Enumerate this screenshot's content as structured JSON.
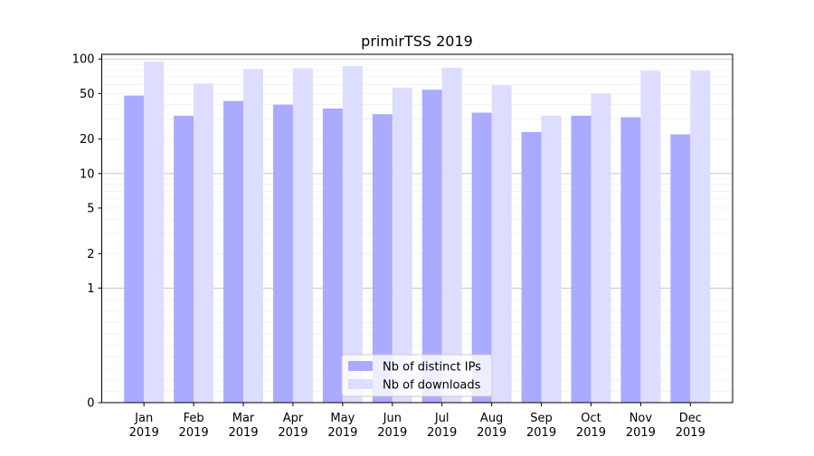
{
  "chart_data": {
    "type": "bar",
    "title": "primirTSS 2019",
    "xlabel": "",
    "ylabel": "",
    "yscale": "symlog",
    "ylim": [
      0,
      110
    ],
    "yticks": [
      0,
      1,
      2,
      5,
      10,
      20,
      50,
      100
    ],
    "ytick_labels": [
      "0",
      "1",
      "2",
      "5",
      "10",
      "20",
      "50",
      "100"
    ],
    "categories": [
      "Jan 2019",
      "Feb 2019",
      "Mar 2019",
      "Apr 2019",
      "May 2019",
      "Jun 2019",
      "Jul 2019",
      "Aug 2019",
      "Sep 2019",
      "Oct 2019",
      "Nov 2019",
      "Dec 2019"
    ],
    "category_lines": [
      [
        "Jan",
        "2019"
      ],
      [
        "Feb",
        "2019"
      ],
      [
        "Mar",
        "2019"
      ],
      [
        "Apr",
        "2019"
      ],
      [
        "May",
        "2019"
      ],
      [
        "Jun",
        "2019"
      ],
      [
        "Jul",
        "2019"
      ],
      [
        "Aug",
        "2019"
      ],
      [
        "Sep",
        "2019"
      ],
      [
        "Oct",
        "2019"
      ],
      [
        "Nov",
        "2019"
      ],
      [
        "Dec",
        "2019"
      ]
    ],
    "series": [
      {
        "name": "Nb of distinct IPs",
        "color": "#aaaaff",
        "values": [
          48,
          32,
          43,
          40,
          37,
          33,
          54,
          34,
          23,
          32,
          31,
          22
        ]
      },
      {
        "name": "Nb of downloads",
        "color": "#ddddff",
        "values": [
          95,
          61,
          82,
          83,
          87,
          56,
          84,
          59,
          32,
          50,
          79,
          79
        ]
      }
    ],
    "legend_position": "bottom-center",
    "grid": true
  }
}
